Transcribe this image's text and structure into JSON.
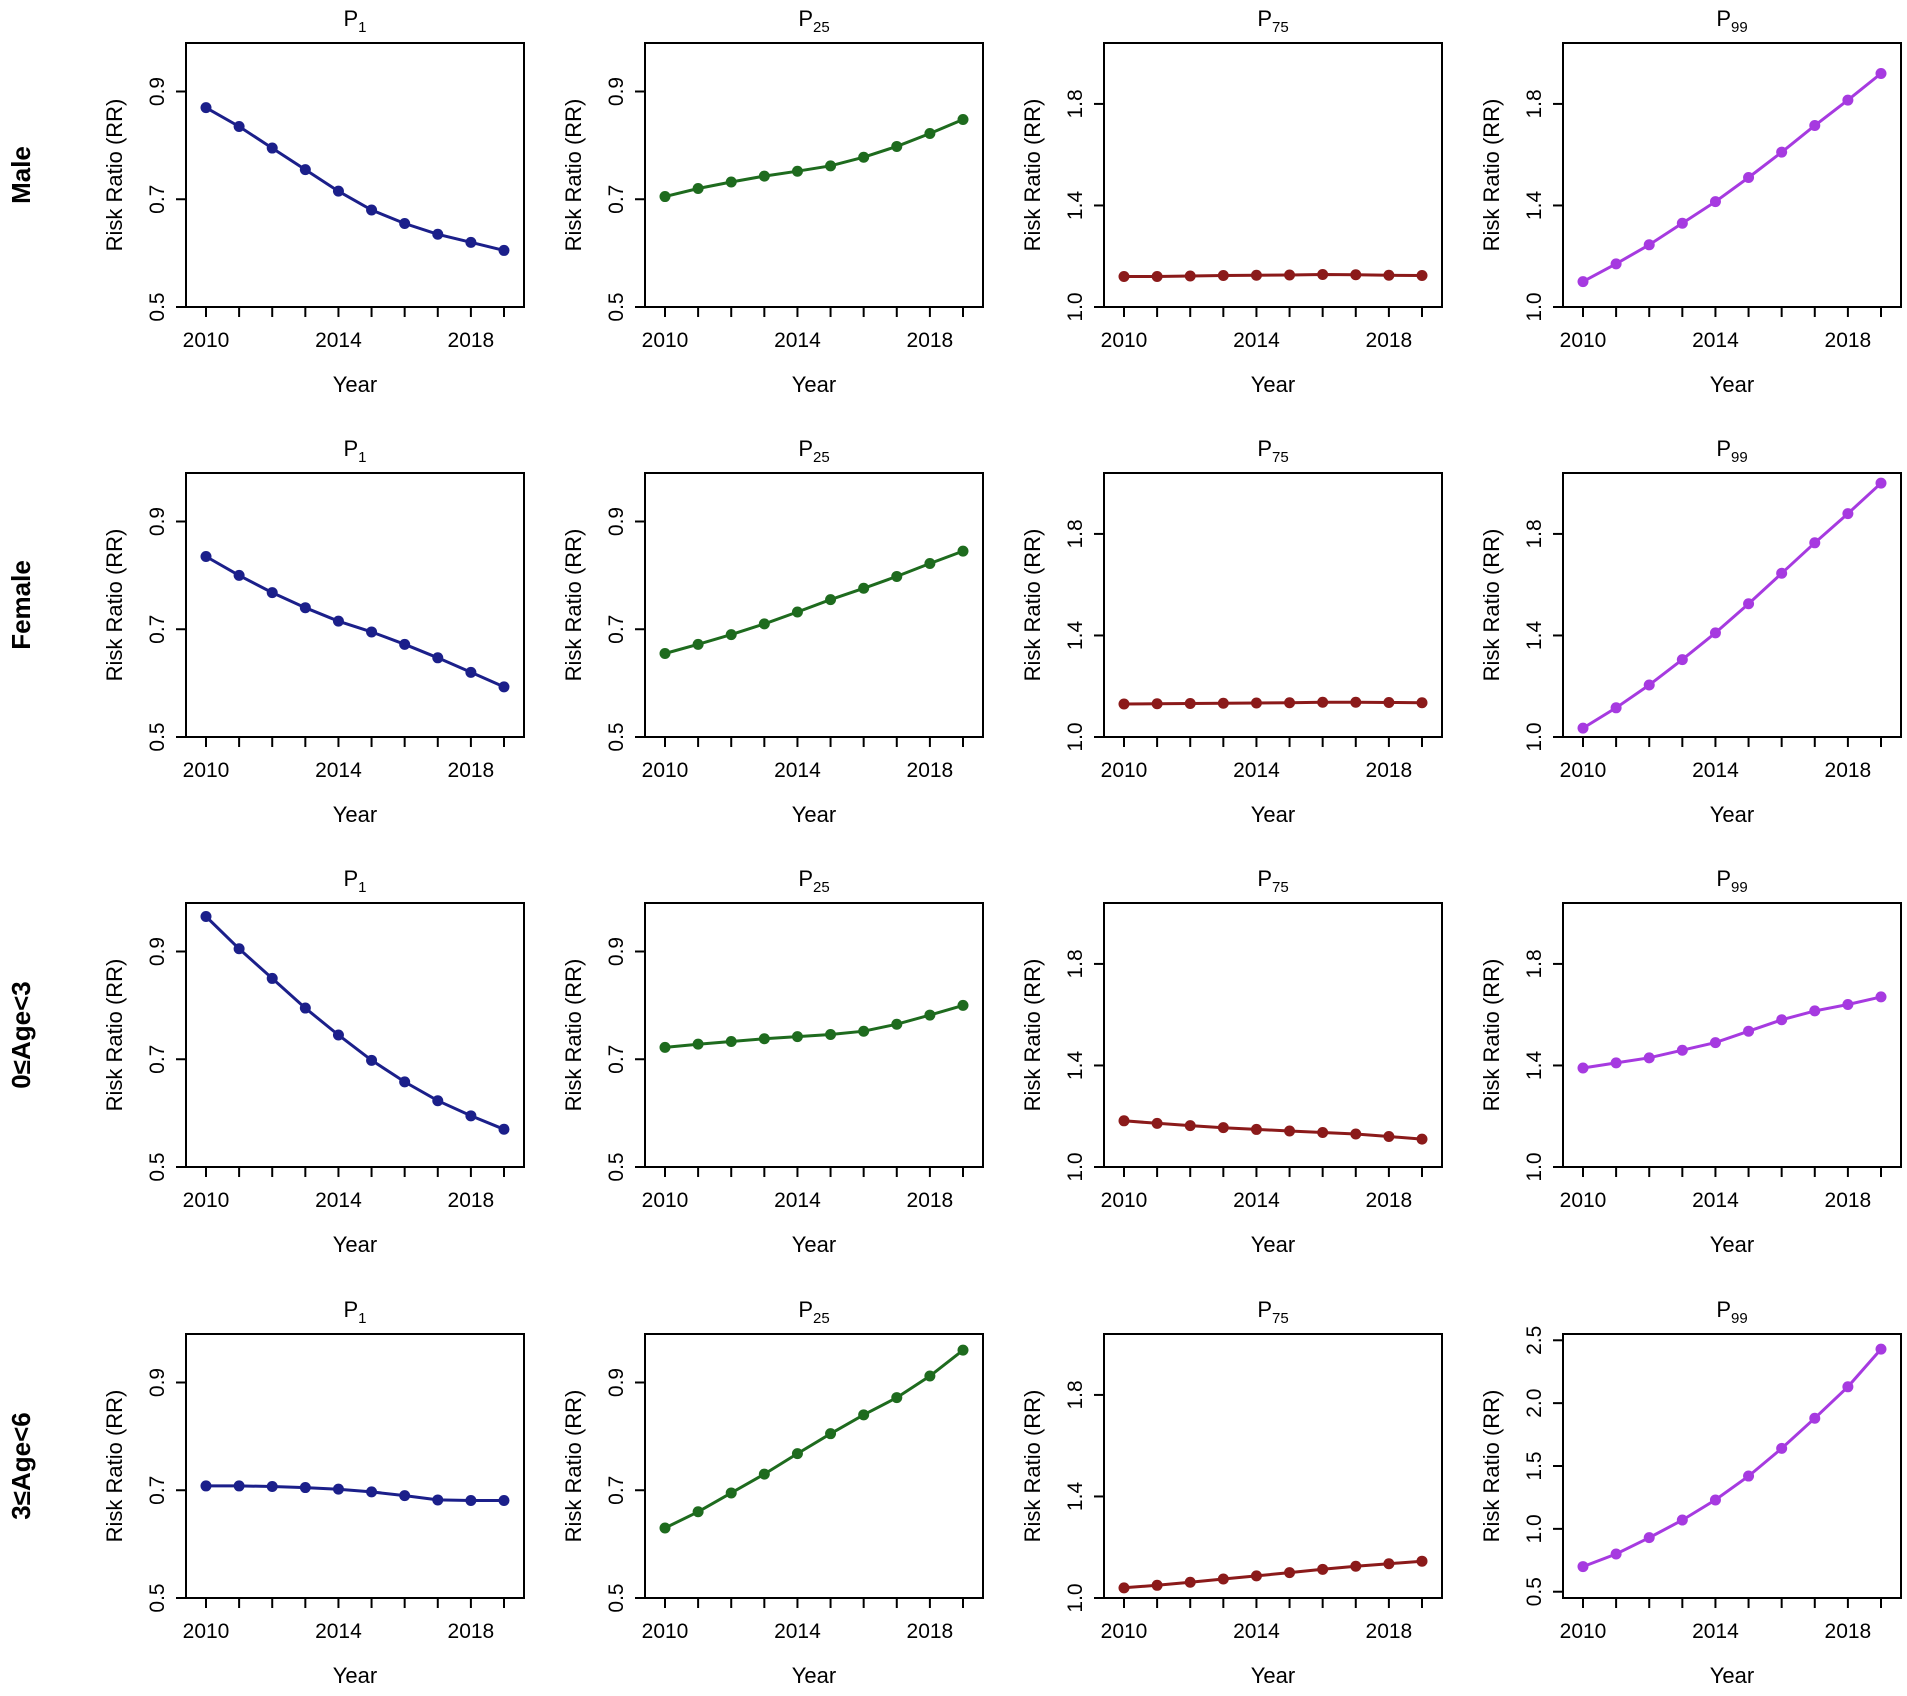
{
  "xlabel": "Year",
  "ylabel": "Risk Ratio (RR)",
  "x_ticks": [
    2010,
    2014,
    2018
  ],
  "series_colors": {
    "P1": "#1b1f8a",
    "P25": "#1e6b1e",
    "P75": "#8b1a1a",
    "P99": "#a63ae0"
  },
  "panel_titles": [
    {
      "main": "P",
      "sub": "1"
    },
    {
      "main": "P",
      "sub": "25"
    },
    {
      "main": "P",
      "sub": "75"
    },
    {
      "main": "P",
      "sub": "99"
    }
  ],
  "row_labels": [
    "Male",
    "Female",
    "0≤Age<3",
    "3≤Age<6"
  ],
  "chart_data": [
    {
      "type": "line",
      "row": "Male",
      "percentile": "P1",
      "title": "P1",
      "xlabel": "Year",
      "ylabel": "Risk Ratio (RR)",
      "x": [
        2010,
        2011,
        2012,
        2013,
        2014,
        2015,
        2016,
        2017,
        2018,
        2019
      ],
      "y": [
        0.87,
        0.835,
        0.795,
        0.755,
        0.715,
        0.68,
        0.655,
        0.635,
        0.62,
        0.605
      ],
      "ylim": [
        0.5,
        0.99
      ],
      "yticks": [
        0.5,
        0.7,
        0.9
      ],
      "ytick_labels": [
        "0.5",
        "0.7",
        "0.9"
      ],
      "xlim": [
        2009.6,
        2019.4
      ]
    },
    {
      "type": "line",
      "row": "Male",
      "percentile": "P25",
      "title": "P25",
      "xlabel": "Year",
      "ylabel": "Risk Ratio (RR)",
      "x": [
        2010,
        2011,
        2012,
        2013,
        2014,
        2015,
        2016,
        2017,
        2018,
        2019
      ],
      "y": [
        0.705,
        0.72,
        0.732,
        0.743,
        0.752,
        0.762,
        0.778,
        0.798,
        0.822,
        0.848
      ],
      "ylim": [
        0.5,
        0.99
      ],
      "yticks": [
        0.5,
        0.7,
        0.9
      ],
      "ytick_labels": [
        "0.5",
        "0.7",
        "0.9"
      ],
      "xlim": [
        2009.6,
        2019.4
      ]
    },
    {
      "type": "line",
      "row": "Male",
      "percentile": "P75",
      "title": "P75",
      "xlabel": "Year",
      "ylabel": "Risk Ratio (RR)",
      "x": [
        2010,
        2011,
        2012,
        2013,
        2014,
        2015,
        2016,
        2017,
        2018,
        2019
      ],
      "y": [
        1.12,
        1.12,
        1.122,
        1.124,
        1.125,
        1.126,
        1.128,
        1.127,
        1.125,
        1.124
      ],
      "ylim": [
        1.0,
        2.04
      ],
      "yticks": [
        1.0,
        1.4,
        1.8
      ],
      "ytick_labels": [
        "1.0",
        "1.4",
        "1.8"
      ],
      "xlim": [
        2009.6,
        2019.4
      ]
    },
    {
      "type": "line",
      "row": "Male",
      "percentile": "P99",
      "title": "P99",
      "xlabel": "Year",
      "ylabel": "Risk Ratio (RR)",
      "x": [
        2010,
        2011,
        2012,
        2013,
        2014,
        2015,
        2016,
        2017,
        2018,
        2019
      ],
      "y": [
        1.1,
        1.17,
        1.245,
        1.33,
        1.415,
        1.51,
        1.61,
        1.715,
        1.815,
        1.92
      ],
      "ylim": [
        1.0,
        2.04
      ],
      "yticks": [
        1.0,
        1.4,
        1.8
      ],
      "ytick_labels": [
        "1.0",
        "1.4",
        "1.8"
      ],
      "xlim": [
        2009.6,
        2019.4
      ]
    },
    {
      "type": "line",
      "row": "Female",
      "percentile": "P1",
      "title": "P1",
      "xlabel": "Year",
      "ylabel": "Risk Ratio (RR)",
      "x": [
        2010,
        2011,
        2012,
        2013,
        2014,
        2015,
        2016,
        2017,
        2018,
        2019
      ],
      "y": [
        0.835,
        0.8,
        0.768,
        0.74,
        0.715,
        0.695,
        0.672,
        0.647,
        0.62,
        0.593
      ],
      "ylim": [
        0.5,
        0.99
      ],
      "yticks": [
        0.5,
        0.7,
        0.9
      ],
      "ytick_labels": [
        "0.5",
        "0.7",
        "0.9"
      ],
      "xlim": [
        2009.6,
        2019.4
      ]
    },
    {
      "type": "line",
      "row": "Female",
      "percentile": "P25",
      "title": "P25",
      "xlabel": "Year",
      "ylabel": "Risk Ratio (RR)",
      "x": [
        2010,
        2011,
        2012,
        2013,
        2014,
        2015,
        2016,
        2017,
        2018,
        2019
      ],
      "y": [
        0.655,
        0.672,
        0.69,
        0.71,
        0.732,
        0.755,
        0.776,
        0.798,
        0.822,
        0.845
      ],
      "ylim": [
        0.5,
        0.99
      ],
      "yticks": [
        0.5,
        0.7,
        0.9
      ],
      "ytick_labels": [
        "0.5",
        "0.7",
        "0.9"
      ],
      "xlim": [
        2009.6,
        2019.4
      ]
    },
    {
      "type": "line",
      "row": "Female",
      "percentile": "P75",
      "title": "P75",
      "xlabel": "Year",
      "ylabel": "Risk Ratio (RR)",
      "x": [
        2010,
        2011,
        2012,
        2013,
        2014,
        2015,
        2016,
        2017,
        2018,
        2019
      ],
      "y": [
        1.13,
        1.131,
        1.132,
        1.133,
        1.134,
        1.135,
        1.137,
        1.137,
        1.136,
        1.135
      ],
      "ylim": [
        1.0,
        2.04
      ],
      "yticks": [
        1.0,
        1.4,
        1.8
      ],
      "ytick_labels": [
        "1.0",
        "1.4",
        "1.8"
      ],
      "xlim": [
        2009.6,
        2019.4
      ]
    },
    {
      "type": "line",
      "row": "Female",
      "percentile": "P99",
      "title": "P99",
      "xlabel": "Year",
      "ylabel": "Risk Ratio (RR)",
      "x": [
        2010,
        2011,
        2012,
        2013,
        2014,
        2015,
        2016,
        2017,
        2018,
        2019
      ],
      "y": [
        1.035,
        1.115,
        1.205,
        1.305,
        1.41,
        1.525,
        1.645,
        1.765,
        1.88,
        2.0
      ],
      "ylim": [
        1.0,
        2.04
      ],
      "yticks": [
        1.0,
        1.4,
        1.8
      ],
      "ytick_labels": [
        "1.0",
        "1.4",
        "1.8"
      ],
      "xlim": [
        2009.6,
        2019.4
      ]
    },
    {
      "type": "line",
      "row": "0≤Age<3",
      "percentile": "P1",
      "title": "P1",
      "xlabel": "Year",
      "ylabel": "Risk Ratio (RR)",
      "x": [
        2010,
        2011,
        2012,
        2013,
        2014,
        2015,
        2016,
        2017,
        2018,
        2019
      ],
      "y": [
        0.965,
        0.905,
        0.85,
        0.795,
        0.745,
        0.698,
        0.658,
        0.623,
        0.595,
        0.57
      ],
      "ylim": [
        0.5,
        0.99
      ],
      "yticks": [
        0.5,
        0.7,
        0.9
      ],
      "ytick_labels": [
        "0.5",
        "0.7",
        "0.9"
      ],
      "xlim": [
        2009.6,
        2019.4
      ]
    },
    {
      "type": "line",
      "row": "0≤Age<3",
      "percentile": "P25",
      "title": "P25",
      "xlabel": "Year",
      "ylabel": "Risk Ratio (RR)",
      "x": [
        2010,
        2011,
        2012,
        2013,
        2014,
        2015,
        2016,
        2017,
        2018,
        2019
      ],
      "y": [
        0.722,
        0.728,
        0.733,
        0.738,
        0.742,
        0.746,
        0.752,
        0.765,
        0.782,
        0.8
      ],
      "ylim": [
        0.5,
        0.99
      ],
      "yticks": [
        0.5,
        0.7,
        0.9
      ],
      "ytick_labels": [
        "0.5",
        "0.7",
        "0.9"
      ],
      "xlim": [
        2009.6,
        2019.4
      ]
    },
    {
      "type": "line",
      "row": "0≤Age<3",
      "percentile": "P75",
      "title": "P75",
      "xlabel": "Year",
      "ylabel": "Risk Ratio (RR)",
      "x": [
        2010,
        2011,
        2012,
        2013,
        2014,
        2015,
        2016,
        2017,
        2018,
        2019
      ],
      "y": [
        1.182,
        1.172,
        1.163,
        1.155,
        1.148,
        1.142,
        1.136,
        1.13,
        1.12,
        1.11
      ],
      "ylim": [
        1.0,
        2.04
      ],
      "yticks": [
        1.0,
        1.4,
        1.8
      ],
      "ytick_labels": [
        "1.0",
        "1.4",
        "1.8"
      ],
      "xlim": [
        2009.6,
        2019.4
      ]
    },
    {
      "type": "line",
      "row": "0≤Age<3",
      "percentile": "P99",
      "title": "P99",
      "xlabel": "Year",
      "ylabel": "Risk Ratio (RR)",
      "x": [
        2010,
        2011,
        2012,
        2013,
        2014,
        2015,
        2016,
        2017,
        2018,
        2019
      ],
      "y": [
        1.39,
        1.41,
        1.43,
        1.46,
        1.49,
        1.535,
        1.58,
        1.615,
        1.64,
        1.67
      ],
      "ylim": [
        1.0,
        2.04
      ],
      "yticks": [
        1.0,
        1.4,
        1.8
      ],
      "ytick_labels": [
        "1.0",
        "1.4",
        "1.8"
      ],
      "xlim": [
        2009.6,
        2019.4
      ]
    },
    {
      "type": "line",
      "row": "3≤Age<6",
      "percentile": "P1",
      "title": "P1",
      "xlabel": "Year",
      "ylabel": "Risk Ratio (RR)",
      "x": [
        2010,
        2011,
        2012,
        2013,
        2014,
        2015,
        2016,
        2017,
        2018,
        2019
      ],
      "y": [
        0.708,
        0.708,
        0.707,
        0.705,
        0.702,
        0.697,
        0.69,
        0.682,
        0.681,
        0.681
      ],
      "ylim": [
        0.5,
        0.99
      ],
      "yticks": [
        0.5,
        0.7,
        0.9
      ],
      "ytick_labels": [
        "0.5",
        "0.7",
        "0.9"
      ],
      "xlim": [
        2009.6,
        2019.4
      ]
    },
    {
      "type": "line",
      "row": "3≤Age<6",
      "percentile": "P25",
      "title": "P25",
      "xlabel": "Year",
      "ylabel": "Risk Ratio (RR)",
      "x": [
        2010,
        2011,
        2012,
        2013,
        2014,
        2015,
        2016,
        2017,
        2018,
        2019
      ],
      "y": [
        0.63,
        0.66,
        0.695,
        0.73,
        0.768,
        0.805,
        0.84,
        0.872,
        0.912,
        0.96
      ],
      "ylim": [
        0.5,
        0.99
      ],
      "yticks": [
        0.5,
        0.7,
        0.9
      ],
      "ytick_labels": [
        "0.5",
        "0.7",
        "0.9"
      ],
      "xlim": [
        2009.6,
        2019.4
      ]
    },
    {
      "type": "line",
      "row": "3≤Age<6",
      "percentile": "P75",
      "title": "P75",
      "xlabel": "Year",
      "ylabel": "Risk Ratio (RR)",
      "x": [
        2010,
        2011,
        2012,
        2013,
        2014,
        2015,
        2016,
        2017,
        2018,
        2019
      ],
      "y": [
        1.04,
        1.05,
        1.062,
        1.075,
        1.087,
        1.1,
        1.113,
        1.125,
        1.135,
        1.145
      ],
      "ylim": [
        1.0,
        2.04
      ],
      "yticks": [
        1.0,
        1.4,
        1.8
      ],
      "ytick_labels": [
        "1.0",
        "1.4",
        "1.8"
      ],
      "xlim": [
        2009.6,
        2019.4
      ]
    },
    {
      "type": "line",
      "row": "3≤Age<6",
      "percentile": "P99",
      "title": "P99",
      "xlabel": "Year",
      "ylabel": "Risk Ratio (RR)",
      "x": [
        2010,
        2011,
        2012,
        2013,
        2014,
        2015,
        2016,
        2017,
        2018,
        2019
      ],
      "y": [
        0.7,
        0.8,
        0.93,
        1.07,
        1.23,
        1.42,
        1.64,
        1.88,
        2.13,
        2.43
      ],
      "ylim": [
        0.45,
        2.55
      ],
      "yticks": [
        0.5,
        1.0,
        1.5,
        2.0,
        2.5
      ],
      "ytick_labels": [
        "0.5",
        "1.0",
        "1.5",
        "2.0",
        "2.5"
      ],
      "xlim": [
        2009.6,
        2019.4
      ]
    }
  ]
}
